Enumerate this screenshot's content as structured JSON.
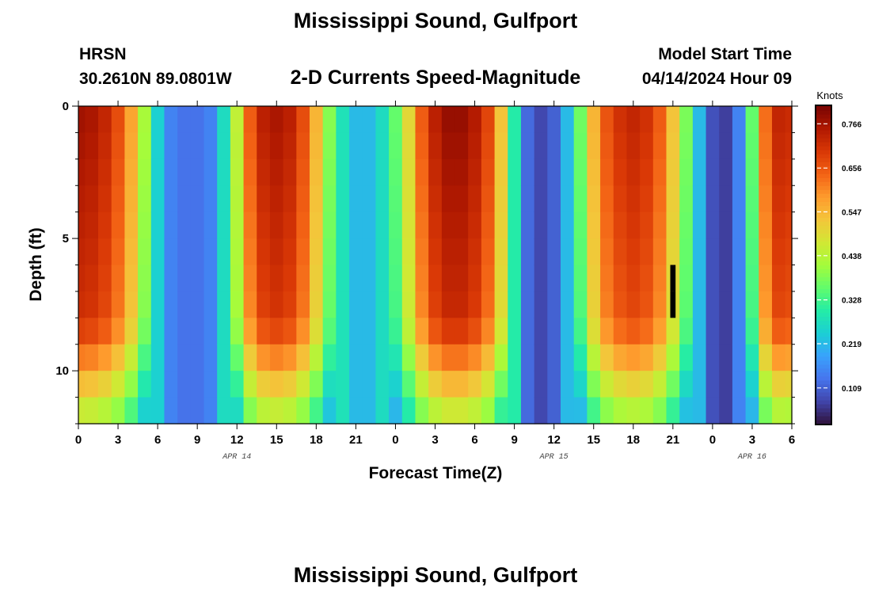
{
  "titles": {
    "main": "Mississippi Sound, Gulfport",
    "station": "HRSN",
    "coords": "30.2610N  89.0801W",
    "product": "2-D Currents Speed-Magnitude",
    "model_label": "Model Start Time",
    "model_time": "04/14/2024 Hour 09",
    "repeat_title": "Mississippi Sound, Gulfport"
  },
  "chart_data": {
    "type": "heatmap",
    "title": "2-D Currents Speed-Magnitude",
    "xlabel": "Forecast Time(Z)",
    "ylabel": "Depth (ft)",
    "x_range_hours": [
      0,
      54
    ],
    "y_range_ft": [
      0,
      12
    ],
    "x_tick_labels": [
      "0",
      "3",
      "6",
      "9",
      "12",
      "15",
      "18",
      "21",
      "0",
      "3",
      "6",
      "9",
      "12",
      "15",
      "18",
      "21",
      "0",
      "3",
      "6"
    ],
    "y_ticks": [
      0,
      5,
      10
    ],
    "y_tick_labels": [
      "0",
      "5",
      "10"
    ],
    "date_labels": [
      {
        "label": "APR 14",
        "hour": 12
      },
      {
        "label": "APR 15",
        "hour": 36
      },
      {
        "label": "APR 16",
        "hour": 51
      }
    ],
    "time_step_hours": 1,
    "depth_levels_ft": [
      0.5,
      1.5,
      2.5,
      3.5,
      4.5,
      5.5,
      6.5,
      7.5,
      8.5,
      9.5,
      10.5,
      11.5
    ],
    "surface_speed_knots": [
      0.77,
      0.76,
      0.73,
      0.67,
      0.57,
      0.42,
      0.25,
      0.15,
      0.13,
      0.13,
      0.15,
      0.27,
      0.45,
      0.65,
      0.74,
      0.76,
      0.74,
      0.67,
      0.55,
      0.39,
      0.28,
      0.22,
      0.22,
      0.27,
      0.36,
      0.5,
      0.65,
      0.74,
      0.78,
      0.78,
      0.75,
      0.68,
      0.53,
      0.3,
      0.12,
      0.08,
      0.11,
      0.22,
      0.37,
      0.55,
      0.66,
      0.71,
      0.73,
      0.71,
      0.65,
      0.53,
      0.38,
      0.22,
      0.09,
      0.07,
      0.15,
      0.36,
      0.63,
      0.73,
      0.72
    ],
    "speed_profile_by_depth": [
      1.0,
      0.99,
      0.98,
      0.97,
      0.96,
      0.95,
      0.94,
      0.93,
      0.89,
      0.8,
      0.7,
      0.6
    ],
    "colorbar": {
      "units": "Knots",
      "ticks": [
        0.766,
        0.656,
        0.547,
        0.438,
        0.328,
        0.219,
        0.109
      ],
      "tick_labels": [
        "0.766",
        "0.656",
        "0.547",
        "0.438",
        "0.328",
        "0.219",
        "0.109"
      ],
      "vmin": 0.02,
      "vmax": 0.81
    },
    "missing_cells": [
      {
        "hour": 45,
        "depth_levels_ft": [
          6.5,
          7.5
        ]
      }
    ],
    "colormap": [
      "#30123b",
      "#4145ab",
      "#4675ed",
      "#39a2fc",
      "#1bcfd4",
      "#24eca6",
      "#61fc6c",
      "#a4fc3b",
      "#d1e834",
      "#f3c63a",
      "#fe9b2d",
      "#f36315",
      "#d93806",
      "#b11901",
      "#7a0402"
    ]
  }
}
